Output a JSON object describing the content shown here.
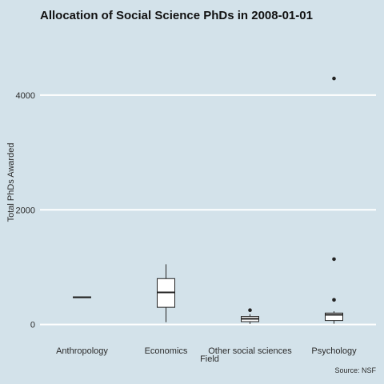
{
  "chart_data": {
    "type": "boxplot",
    "title": "Allocation of Social Science PhDs in 2008-01-01",
    "xlabel": "Field",
    "ylabel": "Total PhDs Awarded",
    "caption": "Source: NSF",
    "categories": [
      "Anthropology",
      "Economics",
      "Other social sciences",
      "Psychology"
    ],
    "yticks": [
      0,
      2000,
      4000
    ],
    "ylim": [
      -270,
      5100
    ],
    "grid": "horizontal-major",
    "boxes": [
      {
        "category": "Anthropology",
        "min": 465,
        "q1": 470,
        "median": 475,
        "q3": 482,
        "max": 488,
        "outliers": []
      },
      {
        "category": "Economics",
        "min": 40,
        "q1": 300,
        "median": 560,
        "q3": 800,
        "max": 1050,
        "outliers": []
      },
      {
        "category": "Other social sciences",
        "min": 10,
        "q1": 50,
        "median": 100,
        "q3": 140,
        "max": 180,
        "outliers": [
          250
        ]
      },
      {
        "category": "Psychology",
        "min": 15,
        "q1": 70,
        "median": 170,
        "q3": 200,
        "max": 230,
        "outliers": [
          430,
          1140,
          4290
        ]
      }
    ],
    "colors": {
      "background": "#d3e2ea",
      "grid": "#ffffff",
      "box_fill": "#ffffff",
      "box_stroke": "#222222"
    }
  }
}
